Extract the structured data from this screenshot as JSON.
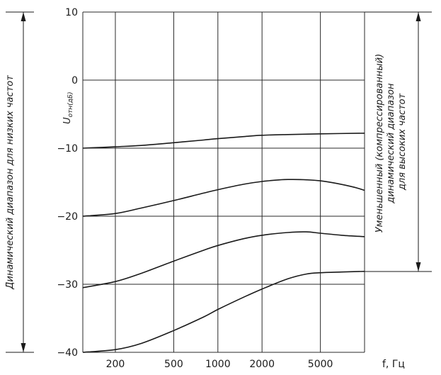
{
  "chart_data": {
    "type": "line",
    "ylabel": "U_отн(дБ)",
    "ylabel_main": "U",
    "ylabel_sub": "отн(дБ)",
    "xlabel": "f, Гц",
    "x_scale": "log",
    "xlim": [
      120,
      10000
    ],
    "ylim": [
      -40,
      10
    ],
    "x_ticks": [
      200,
      500,
      1000,
      2000,
      5000
    ],
    "x_tick_labels": [
      "200",
      "500",
      "1000",
      "2000",
      "5000"
    ],
    "y_ticks": [
      10,
      0,
      -10,
      -20,
      -30,
      -40
    ],
    "y_tick_labels": [
      "10",
      "0",
      "−10",
      "−20",
      "−30",
      "−40"
    ],
    "grid": true,
    "series": [
      {
        "x": [
          120,
          200,
          300,
          500,
          800,
          1000,
          1500,
          2000,
          3000,
          5000,
          10000
        ],
        "y": [
          -10,
          -9.8,
          -9.6,
          -9.2,
          -8.8,
          -8.6,
          -8.3,
          -8.1,
          -8.0,
          -7.9,
          -7.8
        ]
      },
      {
        "x": [
          120,
          200,
          300,
          500,
          800,
          1000,
          1500,
          2000,
          3000,
          5000,
          8000,
          10000
        ],
        "y": [
          -20,
          -19.6,
          -18.8,
          -17.7,
          -16.6,
          -16.1,
          -15.3,
          -14.9,
          -14.6,
          -14.8,
          -15.6,
          -16.2
        ]
      },
      {
        "x": [
          120,
          200,
          300,
          500,
          800,
          1000,
          1500,
          2000,
          3000,
          4000,
          5000,
          7000,
          10000
        ],
        "y": [
          -30.5,
          -29.6,
          -28.4,
          -26.6,
          -25.0,
          -24.3,
          -23.3,
          -22.8,
          -22.4,
          -22.3,
          -22.5,
          -22.8,
          -23.0
        ]
      },
      {
        "x": [
          120,
          200,
          300,
          500,
          800,
          1000,
          1500,
          2000,
          3000,
          4000,
          5000,
          7000,
          10000
        ],
        "y": [
          -40,
          -39.6,
          -38.7,
          -36.8,
          -34.8,
          -33.7,
          -31.9,
          -30.7,
          -29.2,
          -28.5,
          -28.3,
          -28.2,
          -28.1
        ]
      }
    ],
    "annotations": {
      "left": "Динамический диапазон для низких частот",
      "right_line1": "Уменьшенный (компрессированный)",
      "right_line2": "динамический диапазон",
      "right_line3": "для высоких частот"
    }
  }
}
